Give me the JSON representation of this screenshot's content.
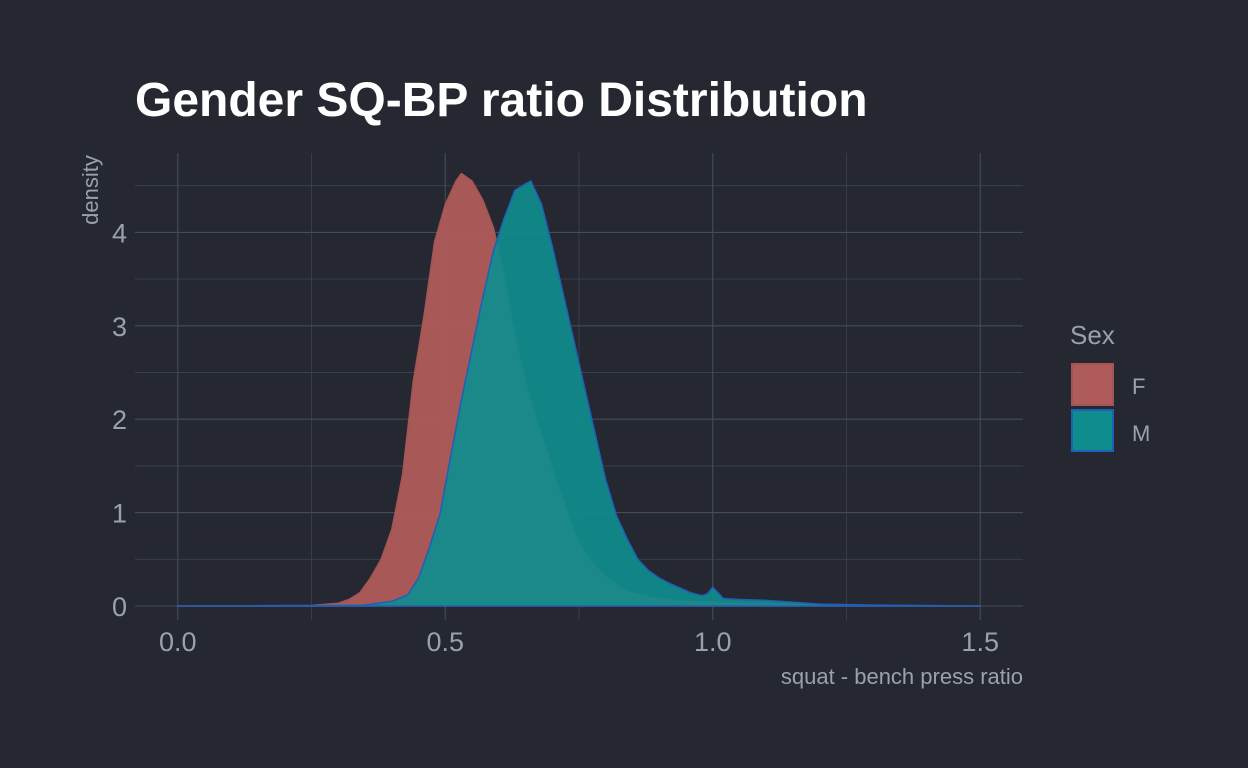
{
  "chart_data": {
    "type": "area",
    "subtype": "density",
    "title": "Gender SQ-BP ratio Distribution",
    "xlabel": "squat - bench press ratio",
    "ylabel": "density",
    "xlim": [
      -0.08,
      1.58
    ],
    "ylim": [
      -0.15,
      4.85
    ],
    "x_ticks": [
      0.0,
      0.5,
      1.0,
      1.5
    ],
    "x_tick_labels": [
      "0.0",
      "0.5",
      "1.0",
      "1.5"
    ],
    "y_ticks": [
      0,
      1,
      2,
      3,
      4
    ],
    "y_tick_labels": [
      "0",
      "1",
      "2",
      "3",
      "4"
    ],
    "grid": true,
    "legend": {
      "title": "Sex",
      "position": "right"
    },
    "series": [
      {
        "name": "F",
        "fill": "#b05b5b",
        "outline": "#a35555",
        "fill_opacity": 0.95,
        "points": [
          [
            0.0,
            0.0
          ],
          [
            0.25,
            0.005
          ],
          [
            0.3,
            0.03
          ],
          [
            0.32,
            0.07
          ],
          [
            0.34,
            0.14
          ],
          [
            0.36,
            0.3
          ],
          [
            0.38,
            0.5
          ],
          [
            0.4,
            0.82
          ],
          [
            0.42,
            1.4
          ],
          [
            0.44,
            2.4
          ],
          [
            0.46,
            3.1
          ],
          [
            0.48,
            3.9
          ],
          [
            0.5,
            4.3
          ],
          [
            0.52,
            4.55
          ],
          [
            0.53,
            4.63
          ],
          [
            0.55,
            4.55
          ],
          [
            0.57,
            4.35
          ],
          [
            0.59,
            4.05
          ],
          [
            0.61,
            3.55
          ],
          [
            0.63,
            2.9
          ],
          [
            0.65,
            2.4
          ],
          [
            0.67,
            2.0
          ],
          [
            0.69,
            1.65
          ],
          [
            0.71,
            1.3
          ],
          [
            0.73,
            0.97
          ],
          [
            0.75,
            0.68
          ],
          [
            0.77,
            0.5
          ],
          [
            0.79,
            0.37
          ],
          [
            0.81,
            0.27
          ],
          [
            0.83,
            0.19
          ],
          [
            0.85,
            0.14
          ],
          [
            0.88,
            0.1
          ],
          [
            0.91,
            0.07
          ],
          [
            0.95,
            0.05
          ],
          [
            0.99,
            0.04
          ],
          [
            1.01,
            0.04
          ],
          [
            1.05,
            0.03
          ],
          [
            1.1,
            0.025
          ],
          [
            1.2,
            0.01
          ],
          [
            1.3,
            0.005
          ],
          [
            1.5,
            0.0
          ]
        ]
      },
      {
        "name": "M",
        "fill": "#0f8c8e",
        "outline": "#1e5fb8",
        "fill_opacity": 0.92,
        "points": [
          [
            0.0,
            0.0
          ],
          [
            0.3,
            0.005
          ],
          [
            0.35,
            0.01
          ],
          [
            0.4,
            0.05
          ],
          [
            0.43,
            0.12
          ],
          [
            0.45,
            0.3
          ],
          [
            0.47,
            0.62
          ],
          [
            0.49,
            0.98
          ],
          [
            0.51,
            1.6
          ],
          [
            0.53,
            2.2
          ],
          [
            0.55,
            2.75
          ],
          [
            0.57,
            3.3
          ],
          [
            0.59,
            3.8
          ],
          [
            0.61,
            4.15
          ],
          [
            0.63,
            4.45
          ],
          [
            0.65,
            4.52
          ],
          [
            0.66,
            4.55
          ],
          [
            0.68,
            4.3
          ],
          [
            0.7,
            3.85
          ],
          [
            0.72,
            3.35
          ],
          [
            0.74,
            2.85
          ],
          [
            0.76,
            2.35
          ],
          [
            0.78,
            1.85
          ],
          [
            0.8,
            1.35
          ],
          [
            0.82,
            0.97
          ],
          [
            0.84,
            0.72
          ],
          [
            0.86,
            0.5
          ],
          [
            0.88,
            0.38
          ],
          [
            0.9,
            0.3
          ],
          [
            0.92,
            0.24
          ],
          [
            0.94,
            0.19
          ],
          [
            0.96,
            0.14
          ],
          [
            0.98,
            0.11
          ],
          [
            0.99,
            0.13
          ],
          [
            1.0,
            0.2
          ],
          [
            1.01,
            0.14
          ],
          [
            1.02,
            0.08
          ],
          [
            1.05,
            0.07
          ],
          [
            1.1,
            0.06
          ],
          [
            1.15,
            0.04
          ],
          [
            1.2,
            0.02
          ],
          [
            1.3,
            0.01
          ],
          [
            1.5,
            0.0
          ]
        ]
      }
    ]
  }
}
